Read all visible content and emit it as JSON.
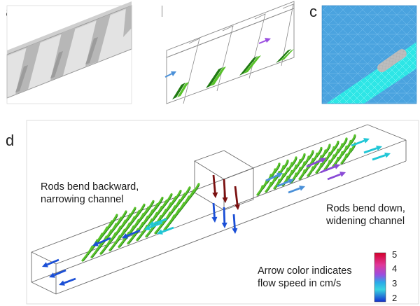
{
  "panels": {
    "a": {
      "label": "a"
    },
    "b": {
      "label": "b"
    },
    "c": {
      "label": "c"
    },
    "d": {
      "label": "d"
    }
  },
  "annotations": {
    "rods_backward_line1": "Rods bend backward,",
    "rods_backward_line2": "narrowing channel",
    "rods_down_line1": "Rods bend down,",
    "rods_down_line2": "widening channel",
    "arrow_color_line1": "Arrow color indicates",
    "arrow_color_line2": "flow speed in cm/s"
  },
  "colorbar": {
    "ticks": [
      "5",
      "4",
      "3",
      "2"
    ],
    "colors": [
      "#d4002a",
      "#e0389a",
      "#9a4de0",
      "#2aa8e8",
      "#39d4e0",
      "#1330d0"
    ]
  },
  "colors": {
    "rod_green": "#58c22a",
    "rod_dark_green": "#1f7a12",
    "mesh_blue": "#4aa3df",
    "mesh_cyan": "#2ee6e6",
    "arrow_blue": "#1b4fd6",
    "arrow_cyan": "#1fc6d6",
    "arrow_purple": "#8a4ad6",
    "arrow_darkred": "#7a1010"
  }
}
